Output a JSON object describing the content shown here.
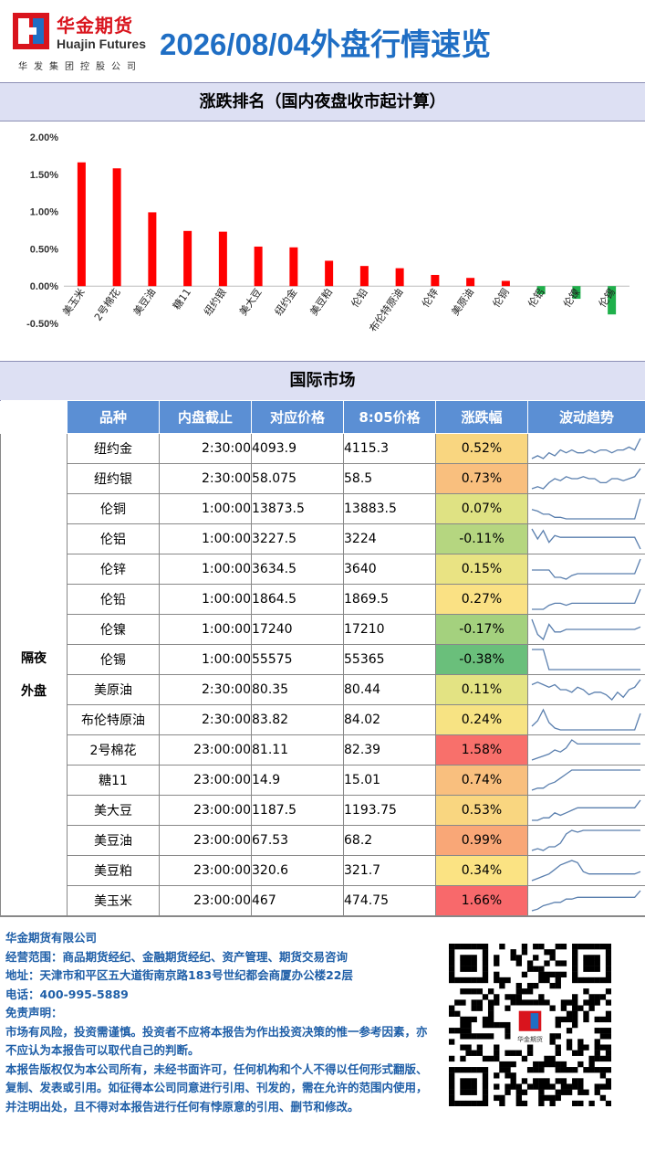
{
  "header": {
    "logo_cn": "华金期货",
    "logo_en": "Huajin Futures",
    "logo_sub": "华发集团控股公司",
    "title": "2026/08/04外盘行情速览",
    "brand_red": "#d9141d",
    "title_blue": "#1f6ec4"
  },
  "ranking": {
    "title": "涨跌排名（国内夜盘收市起计算）"
  },
  "chart_data": {
    "type": "bar",
    "categories": [
      "美玉米",
      "2号棉花",
      "美豆油",
      "糖11",
      "纽约银",
      "美大豆",
      "纽约金",
      "美豆粕",
      "伦铅",
      "布伦特原油",
      "伦锌",
      "美原油",
      "伦铜",
      "伦铝",
      "伦镍",
      "伦锡"
    ],
    "values": [
      1.66,
      1.58,
      0.99,
      0.74,
      0.73,
      0.53,
      0.52,
      0.34,
      0.27,
      0.24,
      0.15,
      0.11,
      0.07,
      -0.11,
      -0.17,
      -0.38
    ],
    "ylim": [
      -0.5,
      2.0
    ],
    "yticks": [
      "2.00%",
      "1.50%",
      "1.00%",
      "0.50%",
      "0.00%",
      "-0.50%"
    ],
    "title": "",
    "xlabel": "",
    "ylabel": "",
    "up_color": "#ff0000",
    "down_color": "#1fb04b"
  },
  "market": {
    "title": "国际市场",
    "group_label_1": "隔夜",
    "group_label_2": "外盘",
    "columns": [
      "品种",
      "内盘截止",
      "对应价格",
      "8:05价格",
      "涨跌幅",
      "波动趋势"
    ],
    "rows": [
      {
        "name": "纽约金",
        "cutoff": "2:30:00",
        "ref": "4093.9",
        "price": "4115.3",
        "chg": "0.52%",
        "color": "#f9d680",
        "trend": [
          5,
          6,
          5,
          7,
          6,
          8,
          7,
          8,
          7,
          7,
          8,
          7,
          8,
          8,
          7,
          8,
          8,
          9,
          8,
          12
        ]
      },
      {
        "name": "纽约银",
        "cutoff": "2:30:00",
        "ref": "58.075",
        "price": "58.5",
        "chg": "0.73%",
        "color": "#f9bf7e",
        "trend": [
          3,
          4,
          3,
          6,
          8,
          7,
          9,
          8,
          8,
          9,
          8,
          8,
          6,
          6,
          8,
          8,
          7,
          8,
          9,
          13
        ]
      },
      {
        "name": "伦铜",
        "cutoff": "1:00:00",
        "ref": "13873.5",
        "price": "13883.5",
        "chg": "0.07%",
        "color": "#dfe283",
        "trend": [
          9,
          8,
          6,
          6,
          4,
          4,
          3,
          3,
          3,
          3,
          3,
          3,
          3,
          3,
          3,
          3,
          3,
          3,
          3,
          16
        ]
      },
      {
        "name": "伦铝",
        "cutoff": "1:00:00",
        "ref": "3227.5",
        "price": "3224",
        "chg": "-0.11%",
        "color": "#b5d680",
        "trend": [
          14,
          8,
          13,
          6,
          10,
          9,
          9,
          9,
          9,
          9,
          9,
          9,
          9,
          9,
          9,
          9,
          9,
          9,
          9,
          2
        ]
      },
      {
        "name": "伦锌",
        "cutoff": "1:00:00",
        "ref": "3634.5",
        "price": "3640",
        "chg": "0.15%",
        "color": "#e9e383",
        "trend": [
          8,
          8,
          8,
          8,
          4,
          4,
          3,
          5,
          6,
          6,
          6,
          6,
          6,
          6,
          6,
          6,
          6,
          6,
          6,
          14
        ]
      },
      {
        "name": "伦铅",
        "cutoff": "1:00:00",
        "ref": "1864.5",
        "price": "1869.5",
        "chg": "0.27%",
        "color": "#fae184",
        "trend": [
          4,
          4,
          4,
          6,
          7,
          7,
          6,
          7,
          7,
          7,
          7,
          7,
          7,
          7,
          7,
          7,
          7,
          7,
          7,
          14
        ]
      },
      {
        "name": "伦镍",
        "cutoff": "1:00:00",
        "ref": "17240",
        "price": "17210",
        "chg": "-0.17%",
        "color": "#a4d17e",
        "trend": [
          12,
          6,
          4,
          10,
          7,
          7,
          8,
          8,
          8,
          8,
          8,
          8,
          8,
          8,
          8,
          8,
          8,
          8,
          8,
          9
        ]
      },
      {
        "name": "伦锡",
        "cutoff": "1:00:00",
        "ref": "55575",
        "price": "55365",
        "chg": "-0.38%",
        "color": "#6abf7b",
        "trend": [
          16,
          16,
          16,
          4,
          4,
          4,
          4,
          4,
          4,
          4,
          4,
          4,
          4,
          4,
          4,
          4,
          4,
          4,
          4,
          4
        ]
      },
      {
        "name": "美原油",
        "cutoff": "2:30:00",
        "ref": "80.35",
        "price": "80.44",
        "chg": "0.11%",
        "color": "#e3e383",
        "trend": [
          10,
          11,
          10,
          9,
          10,
          8,
          8,
          7,
          9,
          8,
          6,
          7,
          7,
          6,
          4,
          7,
          5,
          8,
          9,
          12
        ]
      },
      {
        "name": "布伦特原油",
        "cutoff": "2:30:00",
        "ref": "83.82",
        "price": "84.02",
        "chg": "0.24%",
        "color": "#f7e383",
        "trend": [
          6,
          9,
          15,
          8,
          5,
          4,
          4,
          4,
          4,
          4,
          4,
          4,
          4,
          4,
          4,
          4,
          4,
          4,
          4,
          13
        ]
      },
      {
        "name": "2号棉花",
        "cutoff": "23:00:00",
        "ref": "81.11",
        "price": "82.39",
        "chg": "1.58%",
        "color": "#f8706b",
        "trend": [
          4,
          5,
          6,
          7,
          9,
          8,
          10,
          14,
          12,
          12,
          12,
          12,
          12,
          12,
          12,
          12,
          12,
          12,
          12,
          12
        ]
      },
      {
        "name": "糖11",
        "cutoff": "23:00:00",
        "ref": "14.9",
        "price": "15.01",
        "chg": "0.74%",
        "color": "#f9bf7e",
        "trend": [
          4,
          5,
          5,
          7,
          8,
          10,
          12,
          14,
          14,
          14,
          14,
          14,
          14,
          14,
          14,
          14,
          14,
          14,
          14,
          14
        ]
      },
      {
        "name": "美大豆",
        "cutoff": "23:00:00",
        "ref": "1187.5",
        "price": "1193.75",
        "chg": "0.53%",
        "color": "#f9d680",
        "trend": [
          4,
          4,
          5,
          5,
          7,
          6,
          7,
          8,
          9,
          9,
          9,
          9,
          9,
          9,
          9,
          9,
          9,
          9,
          9,
          12
        ]
      },
      {
        "name": "美豆油",
        "cutoff": "23:00:00",
        "ref": "67.53",
        "price": "68.2",
        "chg": "0.99%",
        "color": "#f9a777",
        "trend": [
          4,
          5,
          4,
          6,
          6,
          8,
          13,
          15,
          14,
          15,
          15,
          15,
          15,
          15,
          15,
          15,
          15,
          15,
          15,
          15
        ]
      },
      {
        "name": "美豆粕",
        "cutoff": "23:00:00",
        "ref": "320.6",
        "price": "321.7",
        "chg": "0.34%",
        "color": "#fbe383",
        "trend": [
          5,
          6,
          7,
          8,
          10,
          12,
          13,
          14,
          13,
          9,
          8,
          8,
          8,
          8,
          8,
          8,
          8,
          8,
          8,
          9
        ]
      },
      {
        "name": "美玉米",
        "cutoff": "23:00:00",
        "ref": "467",
        "price": "474.75",
        "chg": "1.66%",
        "color": "#f8696b",
        "trend": [
          3,
          4,
          6,
          7,
          8,
          8,
          10,
          10,
          11,
          11,
          11,
          11,
          11,
          11,
          11,
          11,
          11,
          11,
          11,
          15
        ]
      }
    ]
  },
  "footer": {
    "company": "华金期货有限公司",
    "scope": " 经营范围：商品期货经纪、金融期货经纪、资产管理、期货交易咨询",
    "address": "  地址：天津市和平区五大道街南京路183号世纪都会商厦办公楼22层",
    "phone": "  电话：400-995-5889",
    "disclaimer_title": " 免责声明：",
    "disclaimer_1": "    市场有风险，投资需谨慎。投资者不应将本报告为作出投资决策的惟一参考因素，亦不应认为本报告可以取代自己的判断。",
    "disclaimer_2": "    本报告版权仅为本公司所有，未经书面许可，任何机构和个人不得以任何形式翻版、复制、发表或引用。如征得本公司同意进行引用、刊发的，需在允许的范围内使用，并注明出处，且不得对本报告进行任何有悖原意的引用、删节和修改。",
    "qr_logo_text": "华金期货"
  }
}
